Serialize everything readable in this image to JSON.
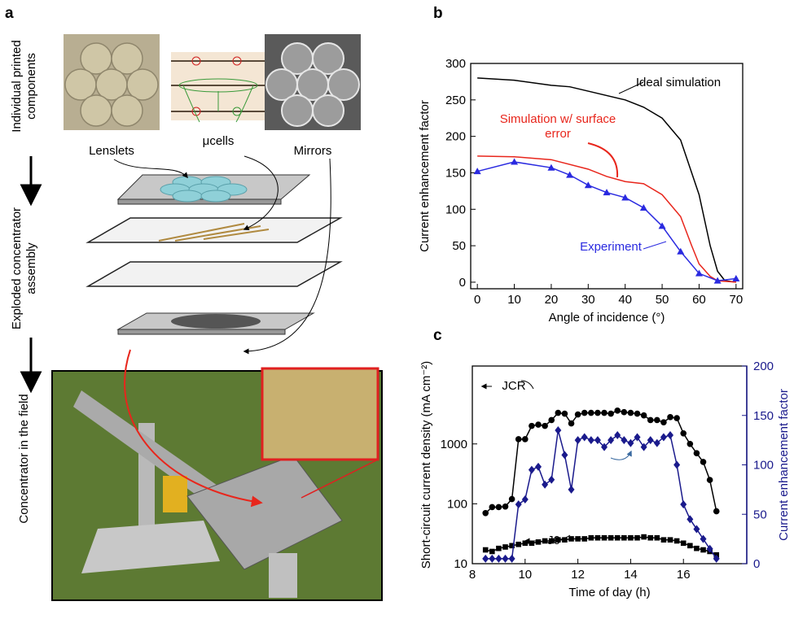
{
  "panel_labels": [
    "a",
    "b",
    "c"
  ],
  "panel_a": {
    "side_labels": [
      "Individual printed components",
      "Exploded concentrator assembly",
      "Concentrator in the field"
    ],
    "component_labels": [
      "Lenslets",
      "μcells",
      "Mirrors"
    ]
  },
  "chart_data": [
    {
      "type": "line",
      "xlabel": "Angle of incidence (°)",
      "ylabel": "Current enhancement factor",
      "xlim": [
        -1.8,
        71.8
      ],
      "xticks": [
        0,
        10,
        20,
        30,
        40,
        50,
        60,
        70
      ],
      "ylim": [
        -9,
        300
      ],
      "yticks": [
        0,
        50,
        100,
        150,
        200,
        250,
        300
      ],
      "series": [
        {
          "name": "Ideal simulation",
          "color": "#000000",
          "x": [
            0,
            10,
            20,
            25,
            30,
            40,
            45,
            50,
            55,
            60,
            63,
            65,
            67,
            70
          ],
          "values": [
            280,
            277,
            270,
            268,
            262,
            250,
            240,
            225,
            195,
            120,
            50,
            15,
            2,
            0
          ]
        },
        {
          "name": "Simulation w/ surface error",
          "color": "#e8261c",
          "x": [
            0,
            10,
            20,
            30,
            35,
            40,
            45,
            50,
            55,
            58,
            60,
            63,
            65,
            70
          ],
          "values": [
            173,
            172,
            168,
            155,
            145,
            138,
            135,
            120,
            90,
            50,
            25,
            8,
            2,
            0
          ]
        },
        {
          "name": "Experiment",
          "color": "#2a2ae0",
          "marker": "triangle",
          "x": [
            0,
            10,
            20,
            25,
            30,
            35,
            40,
            45,
            50,
            55,
            60,
            65,
            70
          ],
          "values": [
            152,
            165,
            157,
            147,
            133,
            123,
            116,
            102,
            77,
            42,
            12,
            2,
            5
          ]
        }
      ]
    },
    {
      "type": "line",
      "xlabel": "Time of day (h)",
      "ylabel": "Short-circuit current density (mA cm⁻²)",
      "y2label": "Current enhancement factor",
      "ylog": true,
      "xlim": [
        8,
        18.4
      ],
      "xticks": [
        8,
        10,
        12,
        14,
        16
      ],
      "ylim": [
        10,
        20000
      ],
      "yticks": [
        10,
        100,
        1000
      ],
      "y2lim": [
        0,
        200
      ],
      "y2ticks": [
        0,
        50,
        100,
        150,
        200
      ],
      "y2color": "#1a1a8c",
      "x": [
        8.5,
        8.75,
        9.0,
        9.25,
        9.5,
        9.75,
        10.0,
        10.25,
        10.5,
        10.75,
        11.0,
        11.25,
        11.5,
        11.75,
        12.0,
        12.25,
        12.5,
        12.75,
        13.0,
        13.25,
        13.5,
        13.75,
        14.0,
        14.25,
        14.5,
        14.75,
        15.0,
        15.25,
        15.5,
        15.75,
        16.0,
        16.25,
        16.5,
        16.75,
        17.0,
        17.25
      ],
      "series": [
        {
          "name": "JCR",
          "color": "#000000",
          "marker": "circle",
          "values": [
            70,
            88,
            88,
            90,
            120,
            1200,
            1200,
            2000,
            2100,
            2000,
            2500,
            3300,
            3200,
            2200,
            3100,
            3300,
            3300,
            3300,
            3300,
            3200,
            3600,
            3400,
            3300,
            3200,
            3000,
            2500,
            2500,
            2300,
            2800,
            2700,
            1500,
            1000,
            700,
            500,
            250,
            75
          ]
        },
        {
          "name": "J0",
          "color": "#000000",
          "marker": "square",
          "values": [
            17,
            16,
            18,
            19,
            20,
            21,
            22,
            22,
            23,
            24,
            24,
            25,
            25,
            26,
            26,
            26,
            27,
            27,
            27,
            27,
            27,
            27,
            27,
            27,
            28,
            27,
            27,
            25,
            25,
            24,
            22,
            20,
            18,
            17,
            16,
            14
          ]
        },
        {
          "color": "#1a1a8c",
          "marker": "diamond",
          "axis": "y2",
          "values": [
            5,
            5,
            5,
            5,
            5,
            60,
            65,
            95,
            98,
            80,
            85,
            135,
            110,
            75,
            125,
            128,
            125,
            125,
            118,
            125,
            130,
            125,
            122,
            128,
            118,
            125,
            122,
            128,
            130,
            100,
            60,
            45,
            35,
            25,
            15,
            5
          ]
        }
      ]
    }
  ]
}
